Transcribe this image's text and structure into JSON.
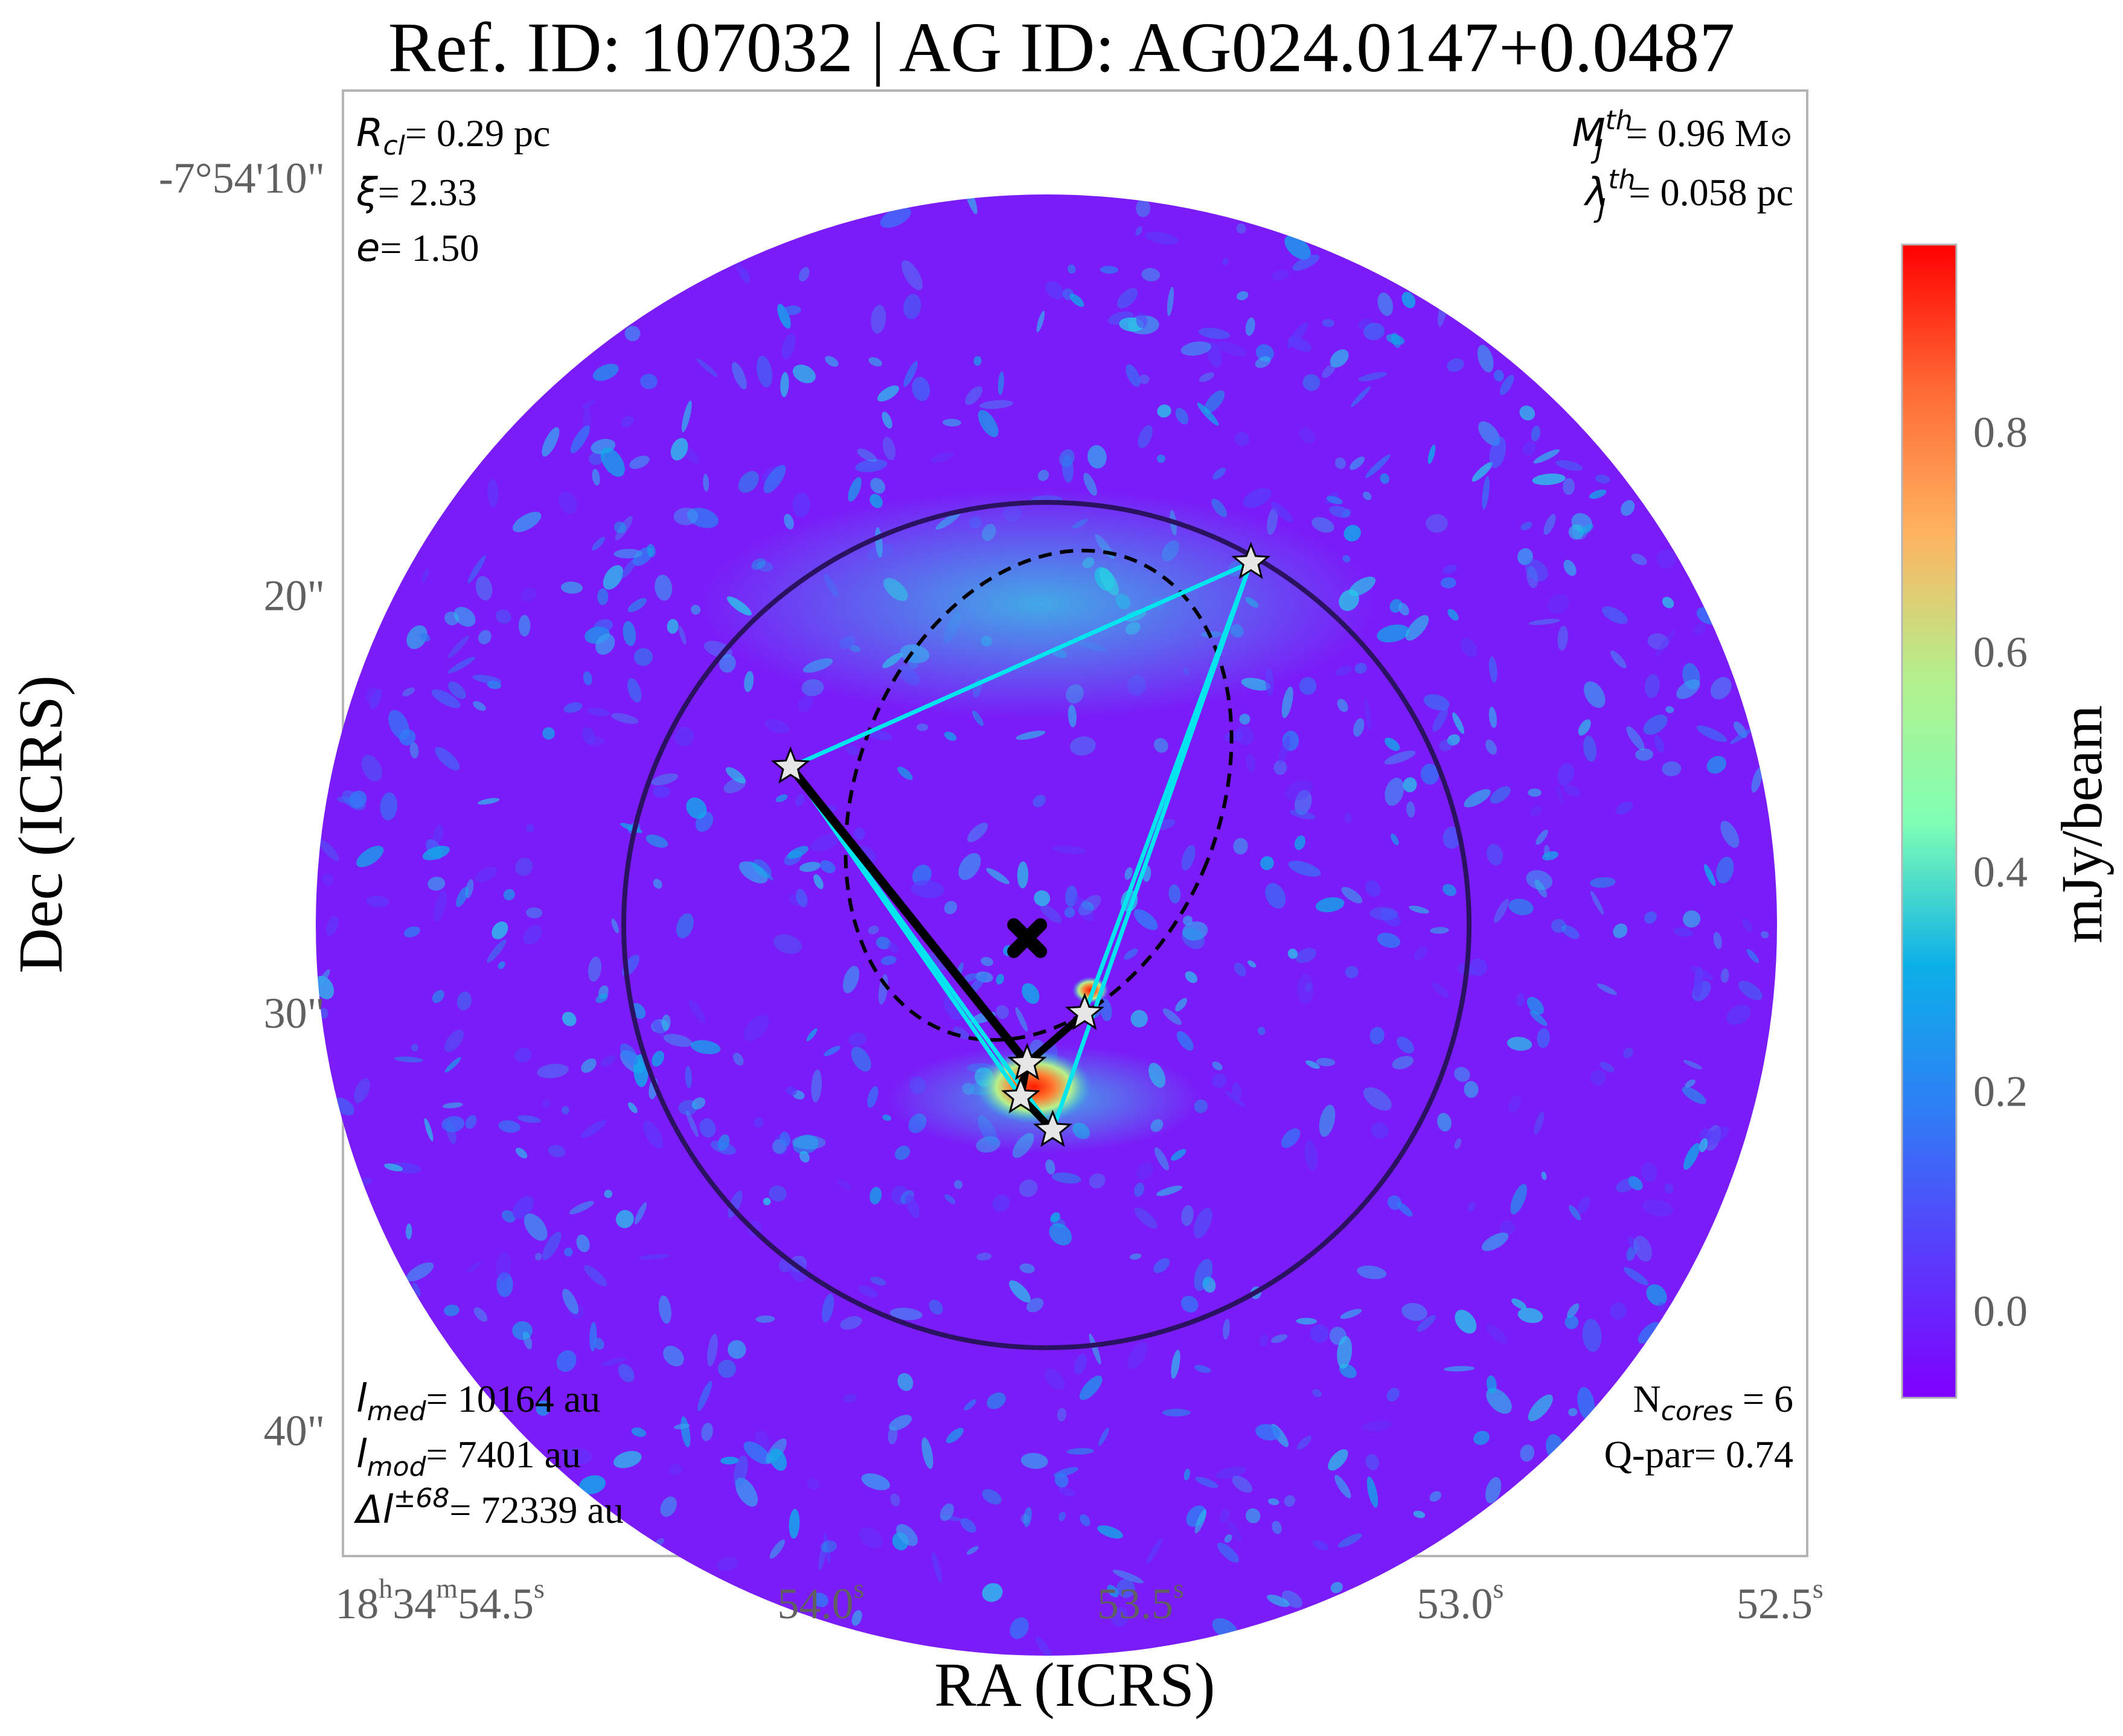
{
  "chart_data": {
    "type": "heatmap",
    "title": "Ref. ID: 107032 | AG ID: AG024.0147+0.0487",
    "xlabel": "RA (ICRS)",
    "ylabel": "Dec (ICRS)",
    "x_ticks": [
      {
        "h": "18",
        "m": "34",
        "s": "54.5",
        "value_s": 54.5
      },
      {
        "s": "54.0",
        "value_s": 54.0
      },
      {
        "s": "53.5",
        "value_s": 53.5
      },
      {
        "s": "53.0",
        "value_s": 53.0
      },
      {
        "s": "52.5",
        "value_s": 52.5
      }
    ],
    "xlim_s": [
      54.77,
      52.48
    ],
    "y_ticks": [
      {
        "label": "-7°54'10\"",
        "value_arcsec": 10
      },
      {
        "label": "20\"",
        "value_arcsec": 20
      },
      {
        "label": "30\"",
        "value_arcsec": 30
      },
      {
        "label": "40\"",
        "value_arcsec": 40
      }
    ],
    "ylim_arcsec": [
      43.0,
      7.9
    ],
    "colorbar": {
      "label": "mJy/beam",
      "min": -0.08,
      "max": 0.97,
      "ticks": [
        "0.0",
        "0.2",
        "0.4",
        "0.6",
        "0.8"
      ],
      "tick_values": [
        0.0,
        0.2,
        0.4,
        0.6,
        0.8
      ],
      "colormap": "rainbow"
    },
    "annotations": {
      "R_cl": {
        "sym": "R",
        "sub": "cl",
        "text": "= 0.29 pc"
      },
      "xi": {
        "sym": "ξ",
        "text": "= 2.33"
      },
      "e": {
        "sym": "e",
        "text": "= 1.50"
      },
      "M_J": {
        "sym": "M",
        "sub": "J",
        "sup": "th",
        "text": "= 0.96 M",
        "unit": "⊙"
      },
      "lambda_J": {
        "sym": "λ",
        "sub": "J",
        "sup": "th",
        "text": "= 0.058 pc"
      },
      "l_med": {
        "sym": "l",
        "sub": "med",
        "text": "= 10164 au"
      },
      "l_mod": {
        "sym": "l",
        "sub": "mod",
        "text": "= 7401 au"
      },
      "delta_l": {
        "sym": "Δl",
        "sup": "±68",
        "text": "= 72339 au"
      },
      "n_cores": {
        "sym": "N",
        "sub": "cores",
        "text": " = 6"
      },
      "q_par": {
        "text": "Q-par= 0.74"
      }
    },
    "cores": [
      {
        "ra_s": 54.07,
        "dec_arcsec": 24.1
      },
      {
        "ra_s": 53.35,
        "dec_arcsec": 19.2
      },
      {
        "ra_s": 53.61,
        "dec_arcsec": 30.0
      },
      {
        "ra_s": 53.7,
        "dec_arcsec": 31.2
      },
      {
        "ra_s": 53.71,
        "dec_arcsec": 32.0
      },
      {
        "ra_s": 53.66,
        "dec_arcsec": 32.8
      }
    ],
    "centre": {
      "ra_s": 53.7,
      "dec_arcsec": 28.2
    },
    "mst_edges": [
      [
        0,
        3
      ],
      [
        3,
        2
      ],
      [
        3,
        4
      ],
      [
        4,
        5
      ]
    ],
    "cyan_edges": [
      [
        0,
        1
      ],
      [
        1,
        2
      ],
      [
        1,
        5
      ],
      [
        0,
        5
      ],
      [
        0,
        4
      ]
    ],
    "colors": {
      "mst": "#000000",
      "graph": "#00e5ee",
      "clump_circle": "#2b1260",
      "ellipse": "#000000",
      "core_fill": "#e6e6e6"
    }
  }
}
